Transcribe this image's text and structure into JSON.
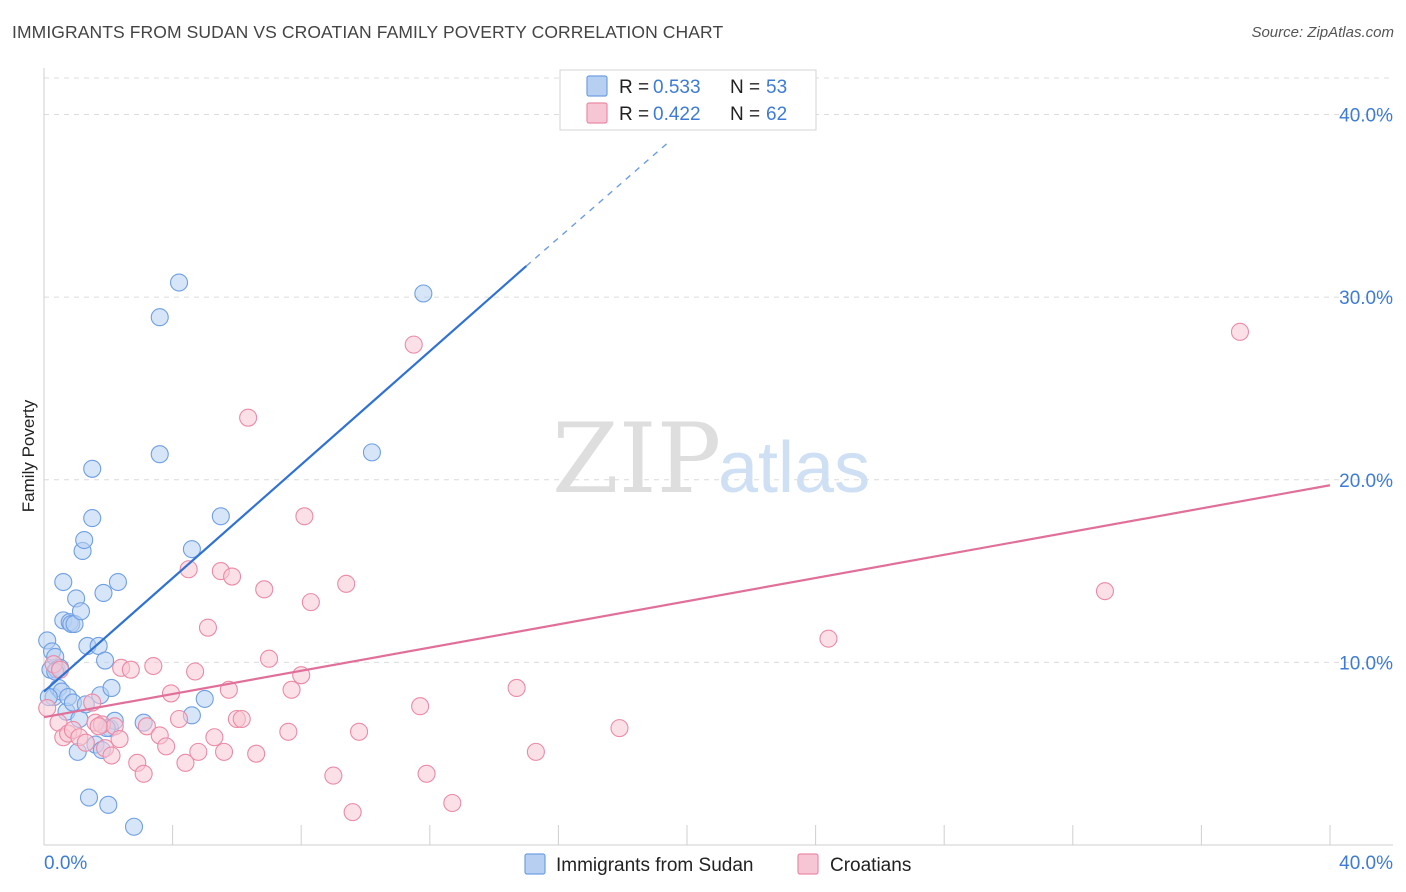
{
  "chart_data": {
    "type": "scatter",
    "title": "IMMIGRANTS FROM SUDAN VS CROATIAN FAMILY POVERTY CORRELATION CHART",
    "source": "Source: ZipAtlas.com",
    "xlabel": "",
    "ylabel": "Family Poverty",
    "xlim": [
      0,
      40
    ],
    "ylim": [
      0,
      42
    ],
    "x_tick_labels": [
      "0.0%",
      "40.0%"
    ],
    "y_ticks": [
      10,
      20,
      30,
      40
    ],
    "y_tick_labels": [
      "10.0%",
      "20.0%",
      "30.0%",
      "40.0%"
    ],
    "watermark": {
      "part1": "ZIP",
      "part2": "atlas"
    },
    "legend": {
      "position": "top-center",
      "rows": [
        {
          "r_label": "R =",
          "r_value": "0.533",
          "n_label": "N =",
          "n_value": "53"
        },
        {
          "r_label": "R =",
          "r_value": "0.422",
          "n_label": "N =",
          "n_value": "62"
        }
      ]
    },
    "series": [
      {
        "name": "Immigrants from Sudan",
        "color": "#6f9fe3",
        "fill": "#b7d0f2",
        "line_color": "#2f72d1",
        "trend": {
          "x0": 0.0,
          "y0": 8.4,
          "x1": 15.0,
          "y1": 31.7,
          "dash_x1": 19.5,
          "dash_y1": 38.6
        },
        "points": [
          [
            0.1,
            11.2
          ],
          [
            0.2,
            9.6
          ],
          [
            0.25,
            10.6
          ],
          [
            0.3,
            8.1
          ],
          [
            0.35,
            10.3
          ],
          [
            0.4,
            9.6
          ],
          [
            0.45,
            8.6
          ],
          [
            0.5,
            9.7
          ],
          [
            0.55,
            8.4
          ],
          [
            0.6,
            14.4
          ],
          [
            0.6,
            12.3
          ],
          [
            0.7,
            7.3
          ],
          [
            0.75,
            8.1
          ],
          [
            0.8,
            12.2
          ],
          [
            0.85,
            12.1
          ],
          [
            0.9,
            7.8
          ],
          [
            0.95,
            12.1
          ],
          [
            1.0,
            13.5
          ],
          [
            1.05,
            5.1
          ],
          [
            1.1,
            6.9
          ],
          [
            1.15,
            12.8
          ],
          [
            1.2,
            16.1
          ],
          [
            1.25,
            16.7
          ],
          [
            1.35,
            10.9
          ],
          [
            1.4,
            2.6
          ],
          [
            1.5,
            17.9
          ],
          [
            1.5,
            20.6
          ],
          [
            1.6,
            5.5
          ],
          [
            1.7,
            10.9
          ],
          [
            1.75,
            8.2
          ],
          [
            1.8,
            5.2
          ],
          [
            1.85,
            13.8
          ],
          [
            1.9,
            10.1
          ],
          [
            2.0,
            2.2
          ],
          [
            2.05,
            6.4
          ],
          [
            2.1,
            8.6
          ],
          [
            2.2,
            6.8
          ],
          [
            2.3,
            14.4
          ],
          [
            2.8,
            1.0
          ],
          [
            3.1,
            6.7
          ],
          [
            3.6,
            28.9
          ],
          [
            3.6,
            21.4
          ],
          [
            4.2,
            30.8
          ],
          [
            4.6,
            16.2
          ],
          [
            4.6,
            7.1
          ],
          [
            5.0,
            8.0
          ],
          [
            5.5,
            18.0
          ],
          [
            10.2,
            21.5
          ],
          [
            11.8,
            30.2
          ],
          [
            0.15,
            8.1
          ],
          [
            0.35,
            9.5
          ],
          [
            1.3,
            7.7
          ],
          [
            1.95,
            6.4
          ]
        ]
      },
      {
        "name": "Croatians",
        "color": "#eb8aa6",
        "fill": "#f7c6d4",
        "line_color": "#e0709a",
        "trend": {
          "x0": 0.0,
          "y0": 7.0,
          "x1": 40.0,
          "y1": 19.7
        },
        "points": [
          [
            0.1,
            7.5
          ],
          [
            0.3,
            9.9
          ],
          [
            0.45,
            6.7
          ],
          [
            0.6,
            5.9
          ],
          [
            0.75,
            6.1
          ],
          [
            0.9,
            6.3
          ],
          [
            1.1,
            5.9
          ],
          [
            1.3,
            5.6
          ],
          [
            1.5,
            7.8
          ],
          [
            1.6,
            6.7
          ],
          [
            1.8,
            6.6
          ],
          [
            1.9,
            5.3
          ],
          [
            2.1,
            4.9
          ],
          [
            2.2,
            6.5
          ],
          [
            2.35,
            5.8
          ],
          [
            2.4,
            9.7
          ],
          [
            2.7,
            9.6
          ],
          [
            2.9,
            4.5
          ],
          [
            3.1,
            3.9
          ],
          [
            3.2,
            6.5
          ],
          [
            3.4,
            9.8
          ],
          [
            3.6,
            6.0
          ],
          [
            3.8,
            5.4
          ],
          [
            3.95,
            8.3
          ],
          [
            4.2,
            6.9
          ],
          [
            4.4,
            4.5
          ],
          [
            4.5,
            15.1
          ],
          [
            4.7,
            9.5
          ],
          [
            4.8,
            5.1
          ],
          [
            5.1,
            11.9
          ],
          [
            5.3,
            5.9
          ],
          [
            5.5,
            15.0
          ],
          [
            5.6,
            5.1
          ],
          [
            5.75,
            8.5
          ],
          [
            5.85,
            14.7
          ],
          [
            6.0,
            6.9
          ],
          [
            6.15,
            6.9
          ],
          [
            6.35,
            23.4
          ],
          [
            6.6,
            5.0
          ],
          [
            6.85,
            14.0
          ],
          [
            7.0,
            10.2
          ],
          [
            7.6,
            6.2
          ],
          [
            7.7,
            8.5
          ],
          [
            8.0,
            9.3
          ],
          [
            8.1,
            18.0
          ],
          [
            8.3,
            13.3
          ],
          [
            9.0,
            3.8
          ],
          [
            9.4,
            14.3
          ],
          [
            9.6,
            1.8
          ],
          [
            9.8,
            6.2
          ],
          [
            11.5,
            27.4
          ],
          [
            11.7,
            7.6
          ],
          [
            11.9,
            3.9
          ],
          [
            12.7,
            2.3
          ],
          [
            14.7,
            8.6
          ],
          [
            15.3,
            5.1
          ],
          [
            17.9,
            6.4
          ],
          [
            24.4,
            11.3
          ],
          [
            33.0,
            13.9
          ],
          [
            37.2,
            28.1
          ],
          [
            0.5,
            9.6
          ],
          [
            1.7,
            6.5
          ]
        ]
      }
    ]
  }
}
